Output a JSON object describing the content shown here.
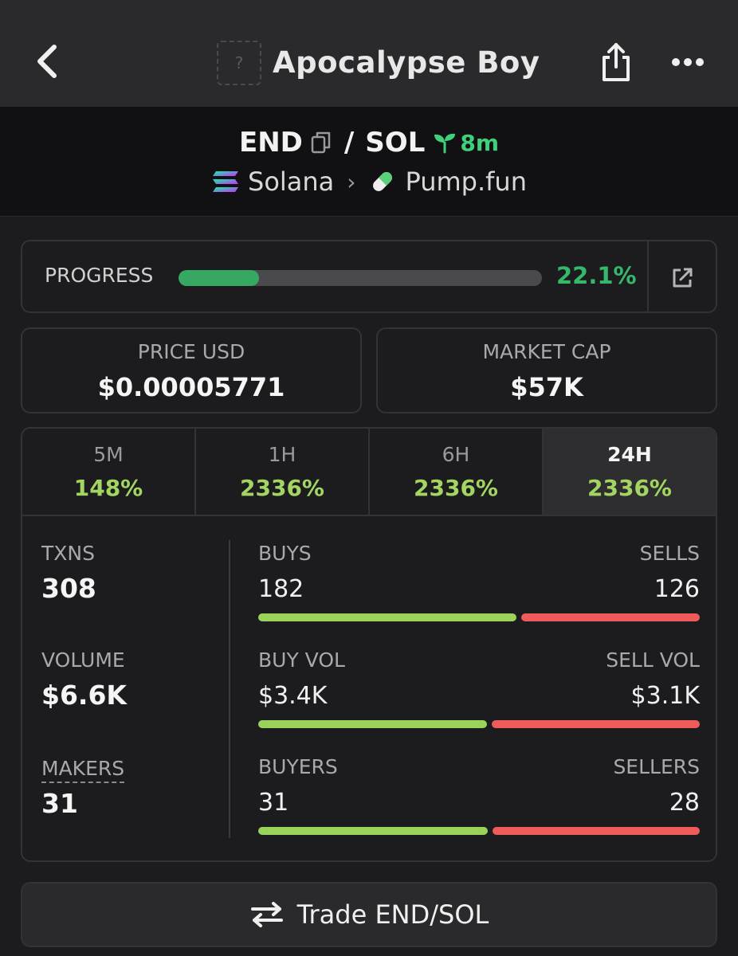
{
  "header": {
    "title": "Apocalypse Boy",
    "token_placeholder": "?"
  },
  "pair": {
    "base": "END",
    "separator": "/",
    "quote": "SOL",
    "age": "8m",
    "chain": "Solana",
    "dex": "Pump.fun"
  },
  "progress": {
    "label": "PROGRESS",
    "percent_text": "22.1%",
    "fraction": 0.221
  },
  "price": {
    "label": "PRICE USD",
    "value": "$0.00005771"
  },
  "market_cap": {
    "label": "MARKET CAP",
    "value": "$57K"
  },
  "timeframes": [
    {
      "label": "5M",
      "change": "148%",
      "active": false
    },
    {
      "label": "1H",
      "change": "2336%",
      "active": false
    },
    {
      "label": "6H",
      "change": "2336%",
      "active": false
    },
    {
      "label": "24H",
      "change": "2336%",
      "active": true
    }
  ],
  "stats": {
    "txns": {
      "label": "TXNS",
      "value": "308"
    },
    "volume": {
      "label": "VOLUME",
      "value": "$6.6K"
    },
    "makers": {
      "label": "MAKERS",
      "value": "31"
    },
    "buys_sells": {
      "left_label": "BUYS",
      "right_label": "SELLS",
      "left_value": "182",
      "right_value": "126",
      "left_num": 182,
      "right_num": 126
    },
    "vol_split": {
      "left_label": "BUY VOL",
      "right_label": "SELL VOL",
      "left_value": "$3.4K",
      "right_value": "$3.1K",
      "left_num": 3.4,
      "right_num": 3.1
    },
    "buyers_sellers": {
      "left_label": "BUYERS",
      "right_label": "SELLERS",
      "left_value": "31",
      "right_value": "28",
      "left_num": 31,
      "right_num": 28
    }
  },
  "trade_button": {
    "label": "Trade END/SOL"
  },
  "colors": {
    "accent_green": "#36b86a",
    "change_green": "#a3d562",
    "buy": "#9bd35a",
    "sell": "#ef5b5b"
  }
}
